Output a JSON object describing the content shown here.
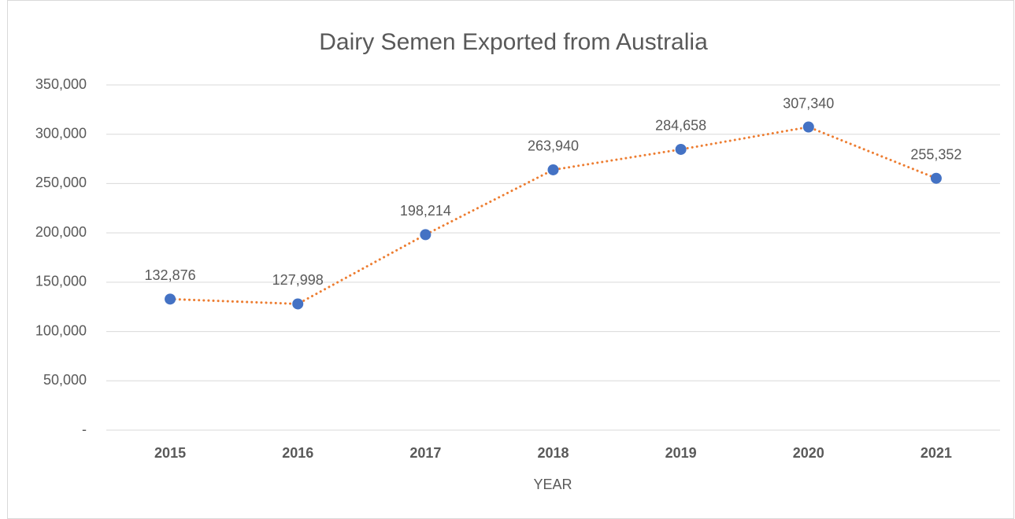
{
  "chart_data": {
    "type": "line",
    "title": "Dairy Semen Exported from Australia",
    "x_label": "YEAR",
    "categories": [
      "2015",
      "2016",
      "2017",
      "2018",
      "2019",
      "2020",
      "2021"
    ],
    "values": [
      132876,
      127998,
      198214,
      263940,
      284658,
      307340,
      255352
    ],
    "value_labels": [
      "132,876",
      "127,998",
      "198,214",
      "263,940",
      "284,658",
      "307,340",
      "255,352"
    ],
    "line_color": "#ed7d31",
    "line_style": "dotted",
    "marker_color": "#4472c4",
    "ylim": [
      0,
      350000
    ],
    "yticks": [
      {
        "value": 0,
        "label": "-"
      },
      {
        "value": 50000,
        "label": "50,000"
      },
      {
        "value": 100000,
        "label": "100,000"
      },
      {
        "value": 150000,
        "label": "150,000"
      },
      {
        "value": 200000,
        "label": "200,000"
      },
      {
        "value": 250000,
        "label": "250,000"
      },
      {
        "value": 300000,
        "label": "300,000"
      },
      {
        "value": 350000,
        "label": "350,000"
      }
    ],
    "grid": true
  }
}
